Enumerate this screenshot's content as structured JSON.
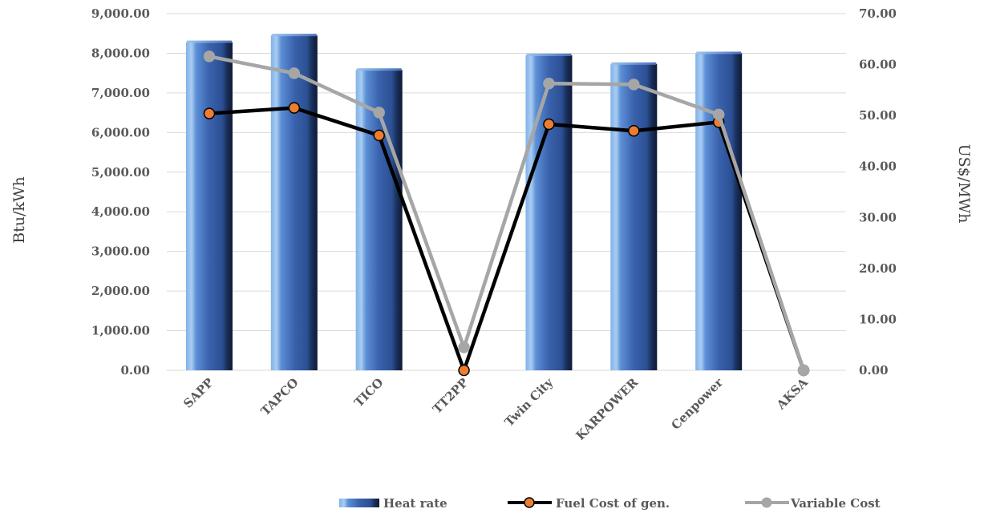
{
  "chart_data": {
    "type": "bar",
    "categories": [
      "SAPP",
      "TAPCO",
      "TICO",
      "TT2PP",
      "Twin City",
      "KARPOWER",
      "Cenpower",
      "AKSA"
    ],
    "series": [
      {
        "name": "Heat rate",
        "type": "bar",
        "axis": "left",
        "values": [
          8280,
          8450,
          7580,
          0,
          7950,
          7730,
          8000,
          0
        ]
      },
      {
        "name": "Fuel Cost of gen.",
        "type": "line",
        "axis": "right",
        "values": [
          50.4,
          51.5,
          46.1,
          0.0,
          48.3,
          47.0,
          48.7,
          0.0
        ]
      },
      {
        "name": "Variable Cost",
        "type": "line",
        "axis": "right",
        "values": [
          61.6,
          58.3,
          50.6,
          4.5,
          56.3,
          56.1,
          50.2,
          0.0
        ]
      }
    ],
    "ylabel": "Btu/kWh",
    "y2label": "US$/MWh",
    "ylim": [
      0,
      9000
    ],
    "y2lim": [
      0,
      70
    ],
    "yticks": [
      "0.00",
      "1,000.00",
      "2,000.00",
      "3,000.00",
      "4,000.00",
      "5,000.00",
      "6,000.00",
      "7,000.00",
      "8,000.00",
      "9,000.00"
    ],
    "y2ticks": [
      "0.00",
      "10.00",
      "20.00",
      "30.00",
      "40.00",
      "50.00",
      "60.00",
      "70.00"
    ],
    "grid": true,
    "legend": "bottom-right",
    "colors": {
      "bar": "#3a62ad",
      "fuel_line": "#000000",
      "fuel_marker": "#ed7d31",
      "variable_line": "#a6a6a6",
      "grid": "#d9d9d9"
    }
  }
}
